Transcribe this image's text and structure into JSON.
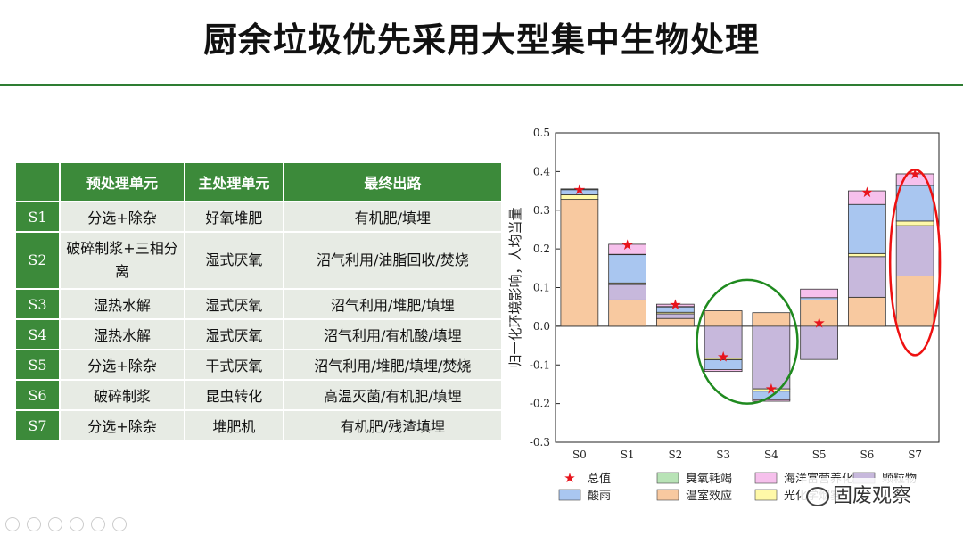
{
  "page": {
    "title": "厨余垃圾优先采用大型集中生物处理"
  },
  "table": {
    "headers": [
      "",
      "预处理单元",
      "主处理单元",
      "最终出路"
    ],
    "rows": [
      {
        "id": "S1",
        "pre": "分选+除杂",
        "main": "好氧堆肥",
        "out": "有机肥/填埋"
      },
      {
        "id": "S2",
        "pre": "破碎制浆+三相分离",
        "main": "湿式厌氧",
        "out": "沼气利用/油脂回收/焚烧"
      },
      {
        "id": "S3",
        "pre": "湿热水解",
        "main": "湿式厌氧",
        "out": "沼气利用/堆肥/填埋"
      },
      {
        "id": "S4",
        "pre": "湿热水解",
        "main": "湿式厌氧",
        "out": "沼气利用/有机酸/填埋"
      },
      {
        "id": "S5",
        "pre": "分选+除杂",
        "main": "干式厌氧",
        "out": "沼气利用/堆肥/填埋/焚烧"
      },
      {
        "id": "S6",
        "pre": "破碎制浆",
        "main": "昆虫转化",
        "out": "高温灭菌/有机肥/填埋"
      },
      {
        "id": "S7",
        "pre": "分选+除杂",
        "main": "堆肥机",
        "out": "有机肥/残渣填埋"
      }
    ]
  },
  "chart_data": {
    "type": "bar",
    "stacked": true,
    "categories": [
      "S0",
      "S1",
      "S2",
      "S3",
      "S4",
      "S5",
      "S6",
      "S7"
    ],
    "ylabel": "归一化环境影响，人均当量",
    "ylim": [
      -0.3,
      0.5
    ],
    "yticks": [
      -0.3,
      -0.2,
      -0.1,
      0.0,
      0.1,
      0.2,
      0.3,
      0.4,
      0.5
    ],
    "series": [
      {
        "name": "温室效应",
        "color": "#f8c9a0",
        "values": [
          0.328,
          0.068,
          0.02,
          0.04,
          0.035,
          0.068,
          0.075,
          0.13
        ]
      },
      {
        "name": "颗粒物",
        "color": "#c7b8dc",
        "values": [
          0.0,
          0.04,
          0.012,
          -0.083,
          -0.162,
          -0.086,
          0.105,
          0.13
        ]
      },
      {
        "name": "光化学烟雾",
        "color": "#fff9a8",
        "values": [
          0.012,
          0.004,
          0.004,
          -0.004,
          -0.006,
          0.0,
          0.008,
          0.012
        ]
      },
      {
        "name": "酸雨",
        "color": "#a9c6f0",
        "values": [
          0.013,
          0.073,
          0.014,
          -0.025,
          -0.02,
          0.006,
          0.127,
          0.092
        ]
      },
      {
        "name": "臭氧耗竭",
        "color": "#b8e3b6",
        "values": [
          0.002,
          0.001,
          0.001,
          0.0,
          -0.002,
          0.0,
          0.0,
          0.0
        ]
      },
      {
        "name": "海洋富营养化",
        "color": "#f6c0ec",
        "values": [
          0.0,
          0.026,
          0.006,
          -0.005,
          -0.004,
          0.022,
          0.035,
          0.03
        ]
      }
    ],
    "totals": [
      0.355,
      0.212,
      0.057,
      -0.078,
      -0.16,
      0.01,
      0.348,
      0.395
    ],
    "legend": [
      {
        "name": "总值",
        "kind": "star",
        "color": "#e8141c"
      },
      {
        "name": "臭氧耗竭",
        "kind": "box",
        "color": "#b8e3b6"
      },
      {
        "name": "海洋富营养化",
        "kind": "box",
        "color": "#f6c0ec"
      },
      {
        "name": "颗粒物",
        "kind": "box",
        "color": "#c7b8dc"
      },
      {
        "name": "酸雨",
        "kind": "box",
        "color": "#a9c6f0"
      },
      {
        "name": "温室效应",
        "kind": "box",
        "color": "#f8c9a0"
      },
      {
        "name": "光化学烟雾",
        "kind": "box",
        "color": "#fff9a8"
      }
    ],
    "legend_placement": "bottom",
    "annotations": [
      {
        "type": "ellipse",
        "color": "#1f8a1f",
        "covers": [
          "S3",
          "S4"
        ]
      },
      {
        "type": "ellipse",
        "color": "#e11",
        "covers": [
          "S7"
        ]
      }
    ]
  },
  "watermark": {
    "text": "固废观察"
  }
}
